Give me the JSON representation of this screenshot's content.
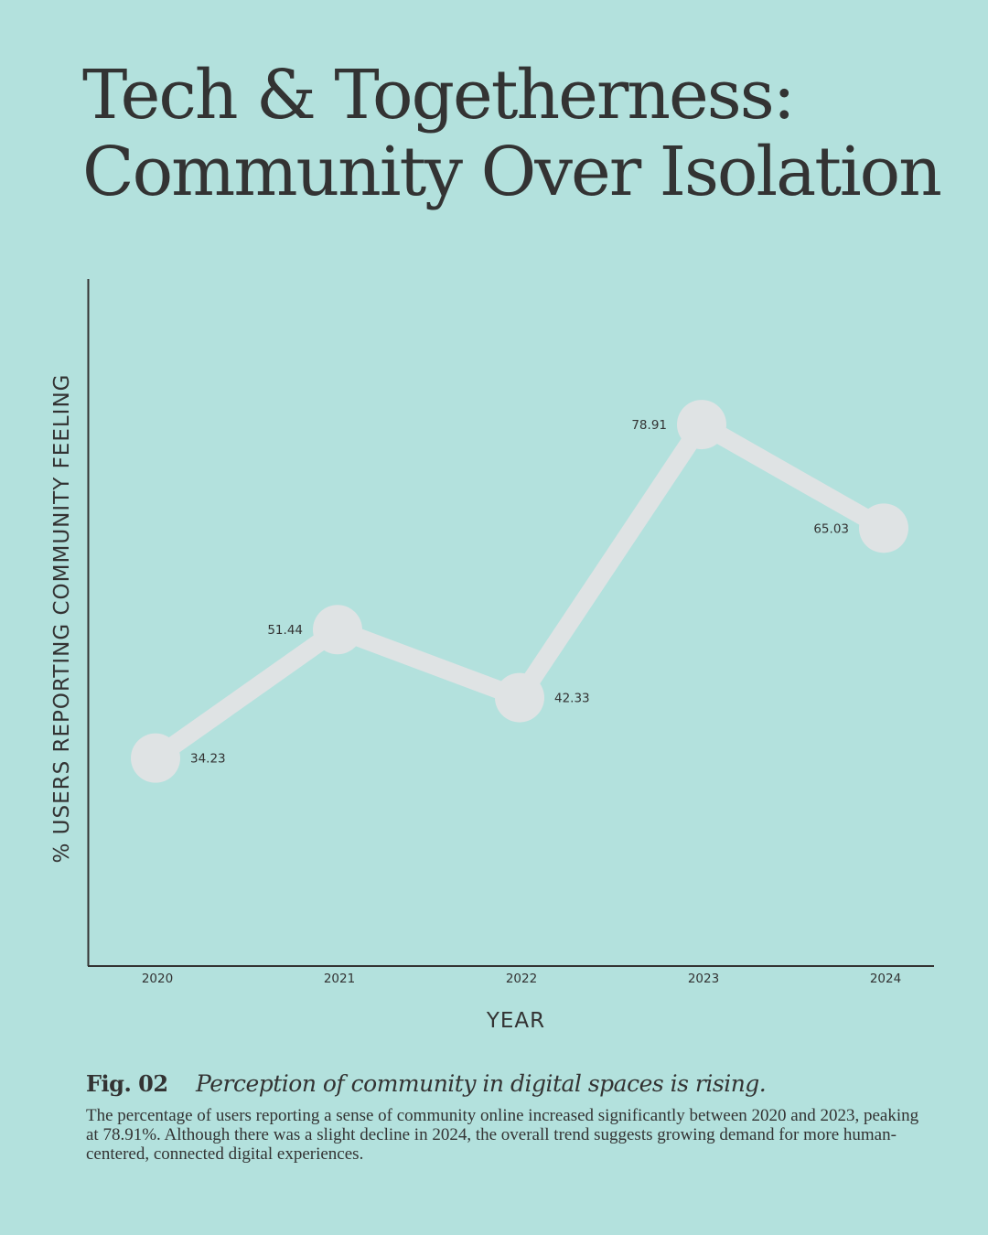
{
  "title": {
    "line1": "Tech & Togetherness:",
    "line2": "Community Over Isolation"
  },
  "colors": {
    "background": "#b3e1dd",
    "line": "#dfe3e4",
    "axis": "#333333",
    "text": "#333333"
  },
  "chart_data": {
    "type": "line",
    "categories": [
      "2020",
      "2021",
      "2022",
      "2023",
      "2024"
    ],
    "series": [
      {
        "name": "% Users Reporting Community Feeling",
        "values": [
          34.23,
          51.44,
          42.33,
          78.91,
          65.03
        ]
      }
    ],
    "data_labels": [
      "34.23",
      "51.44",
      "42.33",
      "78.91",
      "65.03"
    ],
    "xlabel": "YEAR",
    "ylabel": "% USERS REPORTING COMMUNITY FEELING",
    "ylim": [
      0,
      100
    ],
    "grid": false,
    "legend": "none"
  },
  "caption": {
    "figure": "Fig. 02",
    "tagline": "Perception of community in digital spaces is rising.",
    "body": "The percentage of users reporting a sense of community online increased significantly between 2020 and 2023, peaking at 78.91%. Although there was a slight decline in 2024, the overall trend suggests growing demand for more human-centered, connected digital experiences."
  }
}
